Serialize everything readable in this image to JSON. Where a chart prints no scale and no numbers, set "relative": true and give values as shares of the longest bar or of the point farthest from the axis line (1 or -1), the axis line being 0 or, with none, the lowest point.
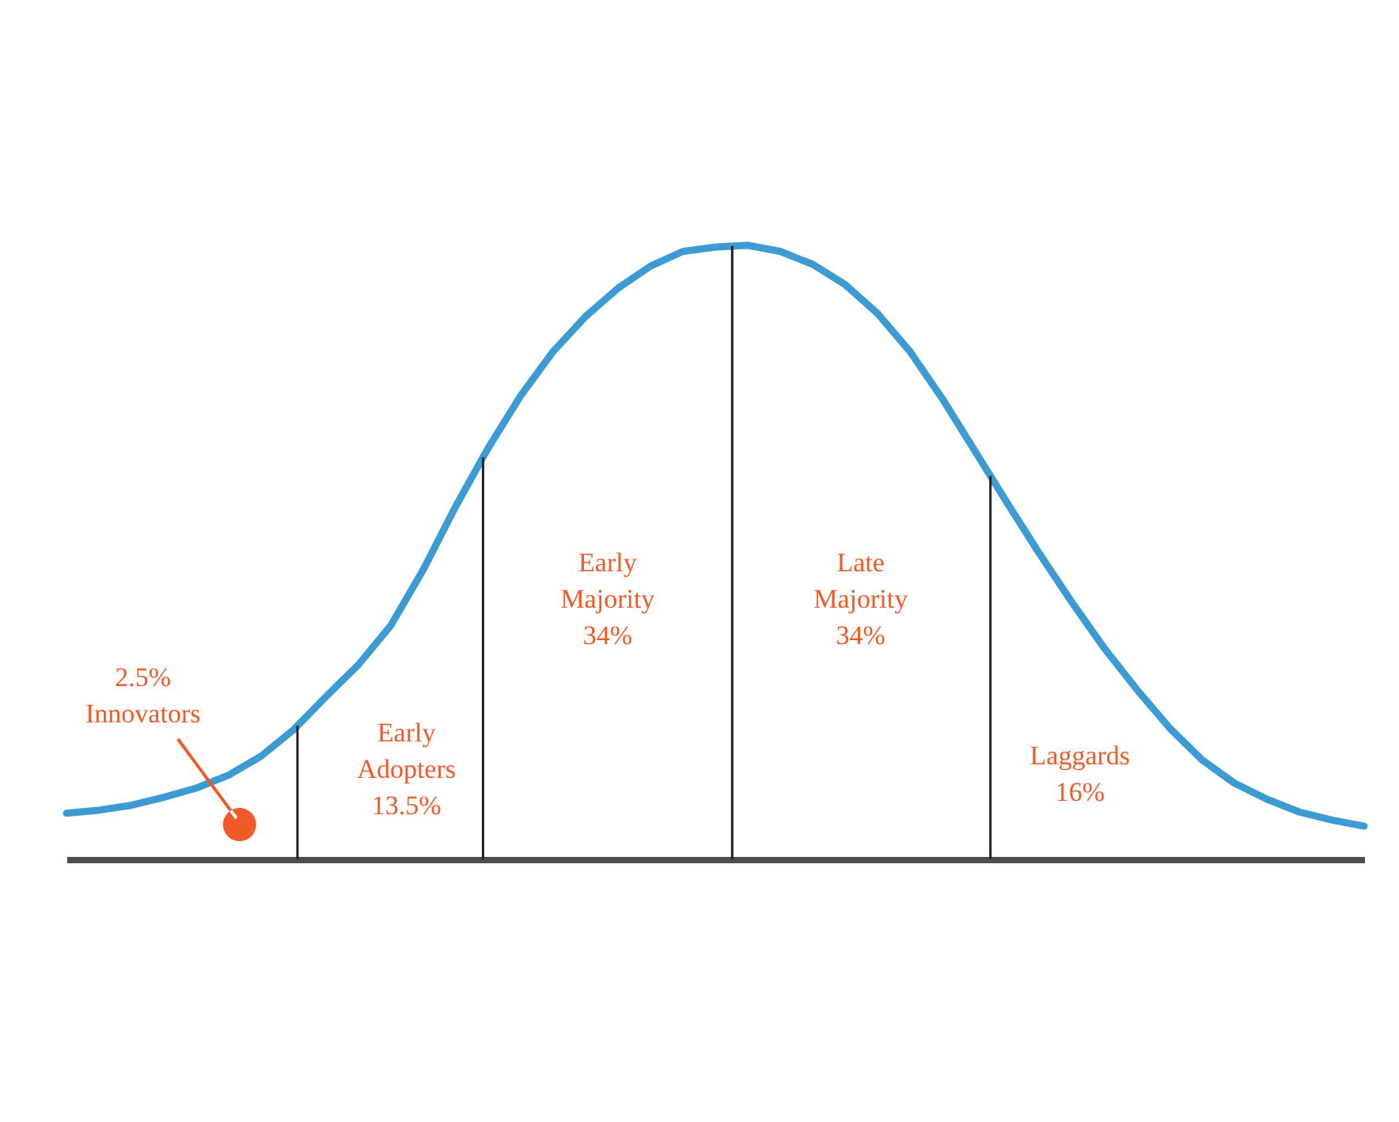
{
  "chart_data": {
    "type": "line",
    "relative": true,
    "color": "#3d9bd4",
    "line_style": "solid",
    "categories": [
      null,
      null,
      null,
      null,
      null,
      null,
      null,
      null,
      null,
      null,
      null,
      null,
      null,
      null,
      null,
      null,
      null,
      null,
      null,
      null,
      null,
      null,
      null,
      null,
      null,
      null,
      null,
      null,
      null,
      null,
      null,
      null,
      null,
      null,
      null,
      null,
      null,
      null,
      null,
      null,
      null
    ],
    "values": [
      0.075,
      0.08,
      0.088,
      0.101,
      0.116,
      0.137,
      0.168,
      0.211,
      0.265,
      0.317,
      0.381,
      0.472,
      0.575,
      0.67,
      0.755,
      0.827,
      0.884,
      0.93,
      0.966,
      0.99,
      0.997,
      1,
      0.99,
      0.969,
      0.936,
      0.889,
      0.827,
      0.75,
      0.665,
      0.58,
      0.497,
      0.418,
      0.343,
      0.276,
      0.214,
      0.162,
      0.124,
      0.098,
      0.077,
      0.064,
      0.054
    ],
    "annotations": [
      "2.5%\nInnovators",
      "Early\nAdopters\n13.5%",
      "Early\nMajority\n34%",
      "Late\nMajority\n34%",
      "Laggards\n16%"
    ]
  }
}
